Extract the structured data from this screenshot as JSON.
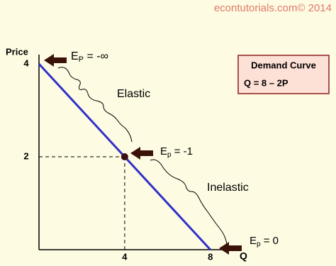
{
  "chart_data": {
    "type": "line",
    "source": "econtutorials.com© 2014",
    "ylabel": "Price",
    "xlabel": "Q",
    "x": [
      0,
      8
    ],
    "series": [
      {
        "values": [
          4,
          0
        ],
        "color": "#3030c8"
      }
    ],
    "point": {
      "x": 4,
      "y": 2
    },
    "xlim": [
      0,
      9
    ],
    "ylim": [
      0,
      4.2
    ],
    "xticks": [
      4,
      8
    ],
    "yticks": [
      2,
      4
    ],
    "box": {
      "title": "Demand Curve",
      "equation": "Q = 8 – 2P"
    },
    "annotations": [
      {
        "main": "E",
        "sub": "P",
        "rest": " = -∞"
      },
      {
        "main": "E",
        "sub": "p",
        "rest": " = -1"
      },
      {
        "main": "E",
        "sub": "p",
        "rest": " = 0"
      },
      {
        "text": "Elastic"
      },
      {
        "text": "Inelastic"
      }
    ]
  }
}
